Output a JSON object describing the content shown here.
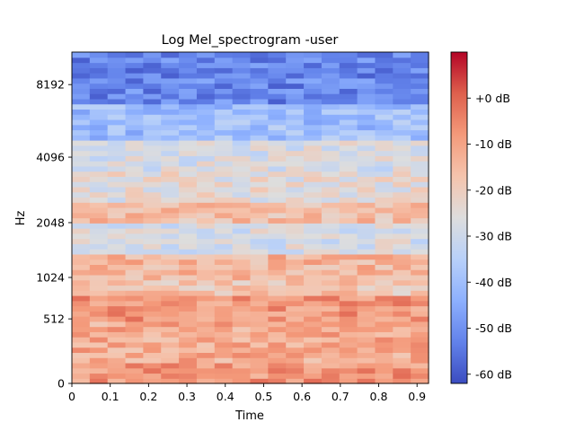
{
  "chart_data": {
    "type": "heatmap",
    "title": "Log Mel_spectrogram -user",
    "xlabel": "Time",
    "ylabel": "Hz",
    "xlim": [
      0,
      0.93
    ],
    "x_ticks": [
      0,
      0.1,
      0.2,
      0.3,
      0.4,
      0.5,
      0.6,
      0.7,
      0.8,
      0.9
    ],
    "x_tick_labels": [
      "0",
      "0.1",
      "0.2",
      "0.3",
      "0.4",
      "0.5",
      "0.6",
      "0.7",
      "0.8",
      "0.9"
    ],
    "y_scale": "mel",
    "y_ticks": [
      0,
      512,
      1024,
      2048,
      4096,
      8192
    ],
    "y_tick_labels": [
      "0",
      "512",
      "1024",
      "2048",
      "4096",
      "8192"
    ],
    "ylim_hz": [
      0,
      11025
    ],
    "colormap": "coolwarm",
    "colorbar": {
      "range": [
        -62,
        10
      ],
      "ticks": [
        0,
        -10,
        -20,
        -30,
        -40,
        -50,
        -60
      ],
      "tick_labels": [
        "+0 dB",
        "-10 dB",
        "-20 dB",
        "-30 dB",
        "-40 dB",
        "-50 dB",
        "-60 dB"
      ]
    },
    "n_time_frames": 20,
    "n_mel_bands": 64,
    "band_profile_db": [
      {
        "mel_hz_bottom": 0,
        "mel_hz_top": 150,
        "level_db": -8
      },
      {
        "mel_hz_bottom": 150,
        "mel_hz_top": 512,
        "level_db": -12
      },
      {
        "mel_hz_bottom": 512,
        "mel_hz_top": 800,
        "level_db": -8
      },
      {
        "mel_hz_bottom": 800,
        "mel_hz_top": 1024,
        "level_db": -18
      },
      {
        "mel_hz_bottom": 1024,
        "mel_hz_top": 1400,
        "level_db": -14
      },
      {
        "mel_hz_bottom": 1400,
        "mel_hz_top": 2048,
        "level_db": -28
      },
      {
        "mel_hz_bottom": 2048,
        "mel_hz_top": 2600,
        "level_db": -16
      },
      {
        "mel_hz_bottom": 2600,
        "mel_hz_top": 3500,
        "level_db": -25
      },
      {
        "mel_hz_bottom": 3500,
        "mel_hz_top": 4800,
        "level_db": -28
      },
      {
        "mel_hz_bottom": 4800,
        "mel_hz_top": 7000,
        "level_db": -40
      },
      {
        "mel_hz_bottom": 7000,
        "mel_hz_top": 11025,
        "level_db": -52
      }
    ]
  },
  "colors": {
    "cmap_low": "#3b4cc0",
    "cmap_mid": "#dddddd",
    "cmap_high": "#b40426"
  }
}
